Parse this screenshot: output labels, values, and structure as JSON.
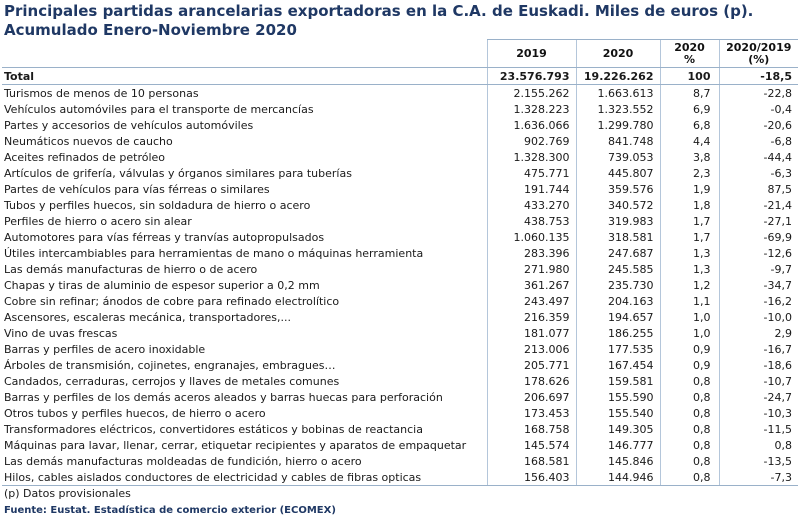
{
  "title_line1": "Principales partidas arancelarias exportadoras en la C.A. de Euskadi. Miles de euros (p).",
  "title_line2": "Acumulado Enero-Noviembre 2020",
  "headers": {
    "h2019": "2019",
    "h2020": "2020",
    "hpct": "2020\n%",
    "hvar": "2020/2019\n(%)"
  },
  "total": {
    "label": "Total",
    "v2019": "23.576.793",
    "v2020": "19.226.262",
    "pct": "100",
    "var": "-18,5"
  },
  "rows": [
    {
      "label": "Turismos de menos de  10 personas",
      "v2019": "2.155.262",
      "v2020": "1.663.613",
      "pct": "8,7",
      "var": "-22,8"
    },
    {
      "label": "Vehículos automóviles para el transporte de mercancías",
      "v2019": "1.328.223",
      "v2020": "1.323.552",
      "pct": "6,9",
      "var": "-0,4"
    },
    {
      "label": "Partes y accesorios de vehículos automóviles",
      "v2019": "1.636.066",
      "v2020": "1.299.780",
      "pct": "6,8",
      "var": "-20,6"
    },
    {
      "label": "Neumáticos nuevos de caucho",
      "v2019": "902.769",
      "v2020": "841.748",
      "pct": "4,4",
      "var": "-6,8"
    },
    {
      "label": "Aceites refinados de petróleo",
      "v2019": "1.328.300",
      "v2020": "739.053",
      "pct": "3,8",
      "var": "-44,4"
    },
    {
      "label": "Artículos de grifería, válvulas y órganos similares para tuberías",
      "v2019": "475.771",
      "v2020": "445.807",
      "pct": "2,3",
      "var": "-6,3"
    },
    {
      "label": "Partes de vehículos para vías férreas o similares",
      "v2019": "191.744",
      "v2020": "359.576",
      "pct": "1,9",
      "var": "87,5"
    },
    {
      "label": "Tubos y perfiles huecos, sin soldadura de hierro o acero",
      "v2019": "433.270",
      "v2020": "340.572",
      "pct": "1,8",
      "var": "-21,4"
    },
    {
      "label": "Perfiles de hierro o acero sin alear",
      "v2019": "438.753",
      "v2020": "319.983",
      "pct": "1,7",
      "var": "-27,1"
    },
    {
      "label": "Automotores para vías férreas y tranvías autopropulsados",
      "v2019": "1.060.135",
      "v2020": "318.581",
      "pct": "1,7",
      "var": "-69,9"
    },
    {
      "label": "Útiles intercambiables para herramientas de mano o máquinas herramienta",
      "v2019": "283.396",
      "v2020": "247.687",
      "pct": "1,3",
      "var": "-12,6"
    },
    {
      "label": "Las demás manufacturas de hierro o de acero",
      "v2019": "271.980",
      "v2020": "245.585",
      "pct": "1,3",
      "var": "-9,7"
    },
    {
      "label": "Chapas y tiras de aluminio de espesor superior a 0,2 mm",
      "v2019": "361.267",
      "v2020": "235.730",
      "pct": "1,2",
      "var": "-34,7"
    },
    {
      "label": "Cobre sin refinar; ánodos de cobre para refinado electrolítico",
      "v2019": "243.497",
      "v2020": "204.163",
      "pct": "1,1",
      "var": "-16,2"
    },
    {
      "label": "Ascensores, escaleras mecánica, transportadores,...",
      "v2019": "216.359",
      "v2020": "194.657",
      "pct": "1,0",
      "var": "-10,0"
    },
    {
      "label": "Vino de uvas frescas",
      "v2019": "181.077",
      "v2020": "186.255",
      "pct": "1,0",
      "var": "2,9"
    },
    {
      "label": "Barras y perfiles de acero inoxidable",
      "v2019": "213.006",
      "v2020": "177.535",
      "pct": "0,9",
      "var": "-16,7"
    },
    {
      "label": "Árboles de transmisión, cojinetes, engranajes, embragues…",
      "v2019": "205.771",
      "v2020": "167.454",
      "pct": "0,9",
      "var": "-18,6"
    },
    {
      "label": "Candados, cerraduras, cerrojos y llaves de metales comunes",
      "v2019": "178.626",
      "v2020": "159.581",
      "pct": "0,8",
      "var": "-10,7"
    },
    {
      "label": "Barras y perfiles de los demás aceros aleados y barras huecas para perforación",
      "v2019": "206.697",
      "v2020": "155.590",
      "pct": "0,8",
      "var": "-24,7"
    },
    {
      "label": "Otros tubos y perfiles huecos, de hierro o acero",
      "v2019": "173.453",
      "v2020": "155.540",
      "pct": "0,8",
      "var": "-10,3"
    },
    {
      "label": "Transformadores eléctricos, convertidores estáticos y bobinas de reactancia",
      "v2019": "168.758",
      "v2020": "149.305",
      "pct": "0,8",
      "var": "-11,5"
    },
    {
      "label": "Máquinas para lavar, llenar, cerrar, etiquetar recipientes  y aparatos de empaquetar",
      "v2019": "145.574",
      "v2020": "146.777",
      "pct": "0,8",
      "var": "0,8"
    },
    {
      "label": "Las demás manufacturas moldeadas de fundición, hierro o acero",
      "v2019": "168.581",
      "v2020": "145.846",
      "pct": "0,8",
      "var": "-13,5"
    },
    {
      "label": "Hilos, cables aislados conductores de electricidad y cables de fibras opticas",
      "v2019": "156.403",
      "v2020": "144.946",
      "pct": "0,8",
      "var": "-7,3"
    }
  ],
  "note": "(p) Datos provisionales",
  "source": "Fuente: Eustat. Estadística de comercio exterior (ECOMEX)"
}
